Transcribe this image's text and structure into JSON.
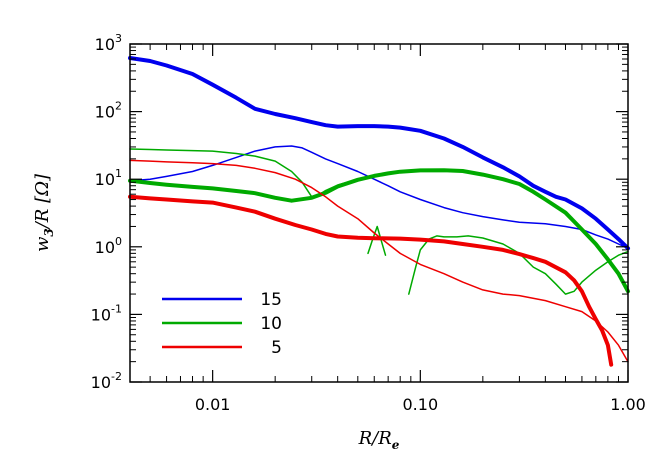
{
  "chart_data": {
    "type": "line",
    "xlabel": "R/R_e",
    "ylabel": "w_3/R [Ω]",
    "xscale": "log",
    "yscale": "log",
    "xlim": [
      0.004,
      1.0
    ],
    "ylim": [
      0.01,
      1000
    ],
    "x_tick_labels": [
      "0.01",
      "0.10",
      "1.00"
    ],
    "x_tick_values": [
      0.01,
      0.1,
      1.0
    ],
    "y_tick_values": [
      0.01,
      0.1,
      1,
      10,
      100,
      1000
    ],
    "y_tick_labels": [
      {
        "base": "10",
        "exp": "-2"
      },
      {
        "base": "10",
        "exp": "-1"
      },
      {
        "base": "10",
        "exp": "0"
      },
      {
        "base": "10",
        "exp": "1"
      },
      {
        "base": "10",
        "exp": "2"
      },
      {
        "base": "10",
        "exp": "3"
      }
    ],
    "grid": false,
    "legend_position": "bottom-left",
    "legend": [
      {
        "label": "15",
        "color": "#0000ee"
      },
      {
        "label": "10",
        "color": "#00aa00"
      },
      {
        "label": "5",
        "color": "#ee0000"
      }
    ],
    "series": [
      {
        "name": "15",
        "style": "thick",
        "color": "#0000ee",
        "points": [
          [
            0.004,
            620
          ],
          [
            0.005,
            560
          ],
          [
            0.006,
            480
          ],
          [
            0.008,
            360
          ],
          [
            0.01,
            250
          ],
          [
            0.013,
            160
          ],
          [
            0.016,
            110
          ],
          [
            0.02,
            92
          ],
          [
            0.025,
            80
          ],
          [
            0.03,
            70
          ],
          [
            0.035,
            63
          ],
          [
            0.04,
            60
          ],
          [
            0.05,
            61
          ],
          [
            0.06,
            61
          ],
          [
            0.07,
            60
          ],
          [
            0.08,
            58
          ],
          [
            0.1,
            52
          ],
          [
            0.13,
            40
          ],
          [
            0.16,
            30
          ],
          [
            0.2,
            21
          ],
          [
            0.25,
            15
          ],
          [
            0.3,
            11
          ],
          [
            0.35,
            8
          ],
          [
            0.4,
            6.5
          ],
          [
            0.45,
            5.5
          ],
          [
            0.5,
            5
          ],
          [
            0.6,
            3.7
          ],
          [
            0.7,
            2.6
          ],
          [
            0.8,
            1.8
          ],
          [
            0.9,
            1.3
          ],
          [
            1.0,
            0.95
          ]
        ]
      },
      {
        "name": "15",
        "style": "thin",
        "color": "#0000ee",
        "points": [
          [
            0.004,
            9.5
          ],
          [
            0.005,
            10
          ],
          [
            0.006,
            11
          ],
          [
            0.008,
            13
          ],
          [
            0.01,
            16
          ],
          [
            0.013,
            21
          ],
          [
            0.016,
            26
          ],
          [
            0.02,
            30
          ],
          [
            0.024,
            31
          ],
          [
            0.027,
            29
          ],
          [
            0.03,
            25
          ],
          [
            0.035,
            20
          ],
          [
            0.04,
            17
          ],
          [
            0.05,
            13
          ],
          [
            0.06,
            10
          ],
          [
            0.07,
            8
          ],
          [
            0.08,
            6.5
          ],
          [
            0.1,
            5
          ],
          [
            0.13,
            3.8
          ],
          [
            0.16,
            3.2
          ],
          [
            0.2,
            2.8
          ],
          [
            0.25,
            2.5
          ],
          [
            0.3,
            2.3
          ],
          [
            0.4,
            2.2
          ],
          [
            0.5,
            2
          ],
          [
            0.6,
            1.8
          ],
          [
            0.7,
            1.5
          ],
          [
            0.8,
            1.3
          ],
          [
            0.9,
            1.1
          ],
          [
            1.0,
            0.95
          ]
        ]
      },
      {
        "name": "10",
        "style": "thick",
        "color": "#00aa00",
        "points": [
          [
            0.004,
            9.5
          ],
          [
            0.005,
            8.8
          ],
          [
            0.006,
            8.3
          ],
          [
            0.008,
            7.7
          ],
          [
            0.01,
            7.3
          ],
          [
            0.013,
            6.7
          ],
          [
            0.016,
            6.2
          ],
          [
            0.02,
            5.3
          ],
          [
            0.024,
            4.8
          ],
          [
            0.03,
            5.3
          ],
          [
            0.035,
            6.3
          ],
          [
            0.04,
            7.8
          ],
          [
            0.05,
            9.8
          ],
          [
            0.06,
            11.2
          ],
          [
            0.07,
            12.2
          ],
          [
            0.08,
            12.9
          ],
          [
            0.1,
            13.5
          ],
          [
            0.13,
            13.6
          ],
          [
            0.16,
            13.2
          ],
          [
            0.2,
            11.7
          ],
          [
            0.25,
            10
          ],
          [
            0.3,
            8.5
          ],
          [
            0.35,
            6.5
          ],
          [
            0.4,
            5
          ],
          [
            0.5,
            3.2
          ],
          [
            0.6,
            1.8
          ],
          [
            0.7,
            1.1
          ],
          [
            0.8,
            0.65
          ],
          [
            0.9,
            0.4
          ],
          [
            1.0,
            0.22
          ]
        ]
      },
      {
        "name": "10",
        "style": "thin",
        "color": "#00aa00",
        "points": [
          [
            0.004,
            28
          ],
          [
            0.005,
            27.5
          ],
          [
            0.006,
            27
          ],
          [
            0.008,
            26.5
          ],
          [
            0.01,
            26
          ],
          [
            0.013,
            24
          ],
          [
            0.016,
            22
          ],
          [
            0.02,
            18.5
          ],
          [
            0.024,
            13
          ],
          [
            0.027,
            9
          ],
          [
            0.03,
            5.5
          ],
          [
            0.032,
            5.7
          ],
          [
            0.035,
            6.8
          ],
          [
            0.04,
            8.2
          ],
          [
            0.05,
            10
          ],
          [
            0.055,
            10.5
          ]
        ]
      },
      {
        "name": "10",
        "style": "thin",
        "color": "#00aa00",
        "points": [
          [
            0.056,
            0.8
          ],
          [
            0.059,
            1.3
          ],
          [
            0.062,
            2.0
          ],
          [
            0.065,
            1.2
          ],
          [
            0.068,
            0.75
          ]
        ]
      },
      {
        "name": "10",
        "style": "thin",
        "color": "#00aa00",
        "points": [
          [
            0.088,
            0.2
          ],
          [
            0.095,
            0.5
          ],
          [
            0.1,
            0.9
          ],
          [
            0.11,
            1.3
          ],
          [
            0.12,
            1.45
          ],
          [
            0.13,
            1.4
          ],
          [
            0.15,
            1.4
          ],
          [
            0.17,
            1.45
          ],
          [
            0.2,
            1.35
          ],
          [
            0.25,
            1.1
          ],
          [
            0.3,
            0.8
          ],
          [
            0.35,
            0.5
          ],
          [
            0.4,
            0.4
          ],
          [
            0.45,
            0.28
          ],
          [
            0.5,
            0.2
          ],
          [
            0.55,
            0.22
          ],
          [
            0.6,
            0.3
          ],
          [
            0.7,
            0.45
          ],
          [
            0.8,
            0.6
          ],
          [
            0.9,
            0.75
          ],
          [
            1.0,
            0.85
          ]
        ]
      },
      {
        "name": "5",
        "style": "thick",
        "color": "#ee0000",
        "points": [
          [
            0.004,
            5.5
          ],
          [
            0.005,
            5.2
          ],
          [
            0.006,
            5
          ],
          [
            0.008,
            4.7
          ],
          [
            0.01,
            4.5
          ],
          [
            0.013,
            3.8
          ],
          [
            0.016,
            3.3
          ],
          [
            0.02,
            2.6
          ],
          [
            0.025,
            2.1
          ],
          [
            0.03,
            1.8
          ],
          [
            0.035,
            1.55
          ],
          [
            0.04,
            1.42
          ],
          [
            0.05,
            1.36
          ],
          [
            0.06,
            1.34
          ],
          [
            0.08,
            1.32
          ],
          [
            0.1,
            1.28
          ],
          [
            0.13,
            1.2
          ],
          [
            0.16,
            1.1
          ],
          [
            0.2,
            1
          ],
          [
            0.25,
            0.9
          ],
          [
            0.3,
            0.78
          ],
          [
            0.35,
            0.68
          ],
          [
            0.4,
            0.6
          ],
          [
            0.5,
            0.42
          ],
          [
            0.55,
            0.32
          ],
          [
            0.6,
            0.22
          ],
          [
            0.65,
            0.13
          ],
          [
            0.7,
            0.085
          ],
          [
            0.75,
            0.058
          ],
          [
            0.8,
            0.035
          ],
          [
            0.83,
            0.018
          ]
        ]
      },
      {
        "name": "5",
        "style": "thin",
        "color": "#ee0000",
        "points": [
          [
            0.004,
            19
          ],
          [
            0.005,
            18.5
          ],
          [
            0.006,
            18
          ],
          [
            0.008,
            17.5
          ],
          [
            0.01,
            17
          ],
          [
            0.013,
            16
          ],
          [
            0.016,
            14.5
          ],
          [
            0.02,
            12.5
          ],
          [
            0.025,
            10
          ],
          [
            0.03,
            7.5
          ],
          [
            0.035,
            5.5
          ],
          [
            0.04,
            4
          ],
          [
            0.05,
            2.6
          ],
          [
            0.06,
            1.6
          ],
          [
            0.07,
            1.1
          ],
          [
            0.08,
            0.8
          ],
          [
            0.1,
            0.55
          ],
          [
            0.13,
            0.4
          ],
          [
            0.16,
            0.3
          ],
          [
            0.2,
            0.23
          ],
          [
            0.25,
            0.2
          ],
          [
            0.3,
            0.19
          ],
          [
            0.4,
            0.16
          ],
          [
            0.5,
            0.13
          ],
          [
            0.6,
            0.11
          ],
          [
            0.7,
            0.08
          ],
          [
            0.8,
            0.055
          ],
          [
            0.9,
            0.035
          ],
          [
            1.0,
            0.02
          ]
        ]
      }
    ]
  }
}
